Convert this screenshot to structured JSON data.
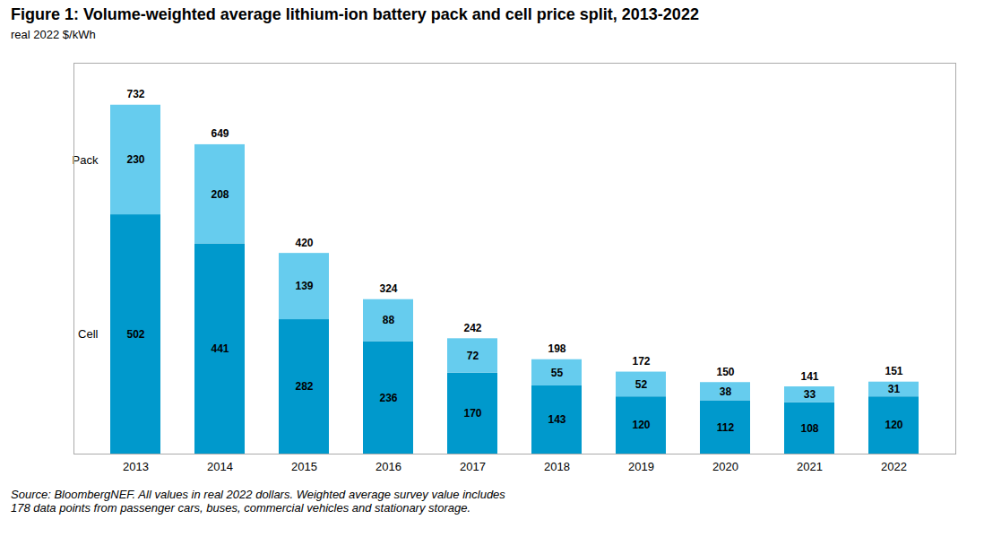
{
  "chart_data": {
    "type": "bar",
    "title": "Figure 1: Volume-weighted average lithium-ion battery pack and cell price split, 2013-2022",
    "subtitle": "real 2022 $/kWh",
    "caption": "Source: BloombergNEF. All values in real 2022 dollars. Weighted average survey value includes\n178 data points from passenger cars, buses, commercial vehicles and stationary storage.",
    "categories": [
      "2013",
      "2014",
      "2015",
      "2016",
      "2017",
      "2018",
      "2019",
      "2020",
      "2021",
      "2022"
    ],
    "series": [
      {
        "name": "Cell",
        "color": "#0099CC",
        "values": [
          502,
          441,
          282,
          236,
          170,
          143,
          120,
          112,
          108,
          120
        ]
      },
      {
        "name": "Pack",
        "color": "#66CCEE",
        "values": [
          230,
          208,
          139,
          88,
          72,
          55,
          52,
          38,
          33,
          31
        ]
      }
    ],
    "totals": [
      732,
      649,
      420,
      324,
      242,
      198,
      172,
      150,
      141,
      151
    ],
    "stacked": true,
    "data_labels": true,
    "ylim": [
      0,
      820
    ],
    "tick_labels": "x",
    "grid": false
  }
}
